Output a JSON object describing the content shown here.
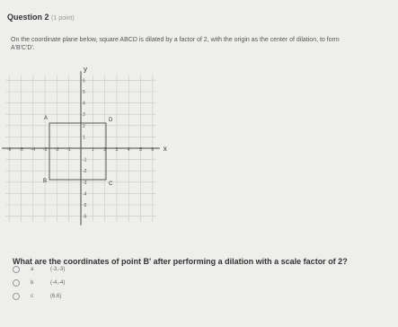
{
  "header": {
    "title": "Question 2",
    "points": "(1 point)"
  },
  "prompt": "On the coordinate plane below, square ABCD is dilated by a factor of 2, with the origin as the center of dilation, to form A'B'C'D'.",
  "graph": {
    "x_label": "x",
    "y_label": "y",
    "x_ticks": [
      -6,
      -5,
      -4,
      -3,
      -2,
      -1,
      1,
      2,
      3,
      4,
      5,
      6
    ],
    "y_ticks": [
      6,
      5,
      4,
      3,
      2,
      1,
      -1,
      -2,
      -3,
      -4,
      -5,
      -6
    ],
    "points": [
      "A",
      "B",
      "C",
      "D"
    ]
  },
  "question": "What are the coordinates of point B' after performing a dilation with a scale factor of 2?",
  "options": [
    {
      "letter": "a",
      "text": "(-3,-3)"
    },
    {
      "letter": "b",
      "text": "(-4,-4)"
    },
    {
      "letter": "c",
      "text": "(6,6)"
    }
  ]
}
